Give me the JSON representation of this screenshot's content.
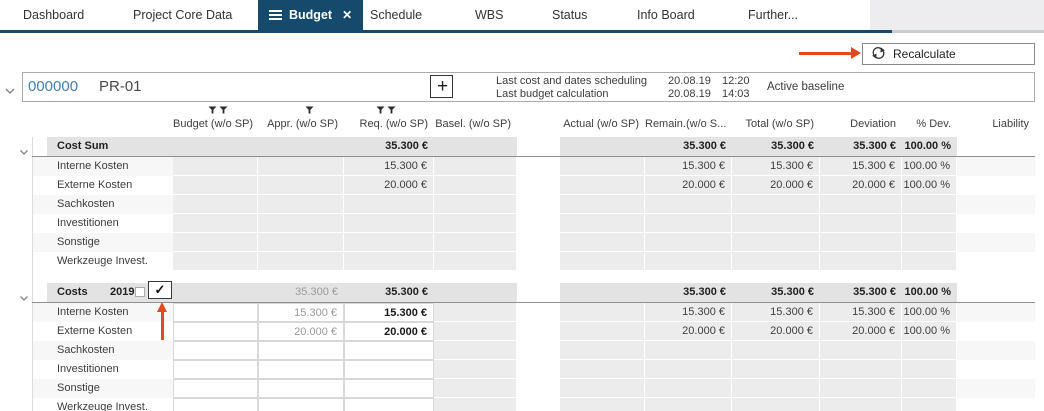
{
  "tabs": [
    {
      "label": "Dashboard",
      "active": false
    },
    {
      "label": "Project Core Data",
      "active": false
    },
    {
      "label": "Budget",
      "active": true
    },
    {
      "label": "Schedule",
      "active": false
    },
    {
      "label": "WBS",
      "active": false
    },
    {
      "label": "Status",
      "active": false
    },
    {
      "label": "Info Board",
      "active": false
    },
    {
      "label": "Further...",
      "active": false
    }
  ],
  "toolbar": {
    "recalculate_label": "Recalculate"
  },
  "project": {
    "number": "000000",
    "code": "PR-01",
    "info": [
      {
        "label": "Last cost and dates scheduling",
        "date": "20.08.19",
        "time": "12:20"
      },
      {
        "label": "Last budget calculation",
        "date": "20.08.19",
        "time": "14:03"
      }
    ],
    "baseline_label": "Active baseline"
  },
  "table": {
    "columns": [
      {
        "key": "budget",
        "label": "Budget (w/o SP)",
        "filters": 2
      },
      {
        "key": "appr",
        "label": "Appr. (w/o SP)",
        "filters": 1
      },
      {
        "key": "req",
        "label": "Req. (w/o SP)",
        "filters": 2
      },
      {
        "key": "basel",
        "label": "Basel. (w/o SP)",
        "filters": 0
      },
      {
        "key": "actual",
        "label": "Actual (w/o SP)",
        "filters": 0
      },
      {
        "key": "remain",
        "label": "Remain.(w/o S...",
        "filters": 0
      },
      {
        "key": "total",
        "label": "Total (w/o SP)",
        "filters": 0
      },
      {
        "key": "deviation",
        "label": "Deviation",
        "filters": 0
      },
      {
        "key": "pdev",
        "label": "% Dev.",
        "filters": 0
      },
      {
        "key": "liability",
        "label": "Liability",
        "filters": 0
      }
    ],
    "groups": [
      {
        "label": "Cost Sum",
        "year": "",
        "has_checkbox": false,
        "style": "readonly",
        "totals": {
          "req": "35.300 €",
          "remain": "35.300 €",
          "total": "35.300 €",
          "deviation": "35.300 €",
          "pdev": "100.00 %"
        },
        "rows": [
          {
            "label": "Interne Kosten",
            "req": "15.300 €",
            "remain": "15.300 €",
            "total": "15.300 €",
            "deviation": "15.300 €",
            "pdev": "100.00 %"
          },
          {
            "label": "Externe Kosten",
            "req": "20.000 €",
            "remain": "20.000 €",
            "total": "20.000 €",
            "deviation": "20.000 €",
            "pdev": "100.00 %"
          },
          {
            "label": "Sachkosten"
          },
          {
            "label": "Investitionen"
          },
          {
            "label": "Sonstige"
          },
          {
            "label": "Werkzeuge Invest."
          }
        ]
      },
      {
        "label": "Costs",
        "year": "2019",
        "has_checkbox": true,
        "style": "editable",
        "totals": {
          "appr": "35.300 €",
          "req": "35.300 €",
          "remain": "35.300 €",
          "total": "35.300 €",
          "deviation": "35.300 €",
          "pdev": "100.00 %"
        },
        "rows": [
          {
            "label": "Interne Kosten",
            "appr": "15.300 €",
            "req": "15.300 €",
            "remain": "15.300 €",
            "total": "15.300 €",
            "deviation": "15.300 €",
            "pdev": "100.00 %"
          },
          {
            "label": "Externe Kosten",
            "appr": "20.000 €",
            "req": "20.000 €",
            "remain": "20.000 €",
            "total": "20.000 €",
            "deviation": "20.000 €",
            "pdev": "100.00 %"
          },
          {
            "label": "Sachkosten"
          },
          {
            "label": "Investitionen"
          },
          {
            "label": "Sonstige"
          },
          {
            "label": "Werkzeuge Invest."
          }
        ]
      }
    ]
  },
  "glyphs": {
    "close": "✕",
    "plus": "+",
    "check": "✓"
  },
  "colors": {
    "accent_navy": "#164a6d",
    "annotation_arrow": "#e2491f",
    "project_number_blue": "#4180b8",
    "group_band_gray": "#e3e3e3",
    "cell_gray": "#ececec"
  }
}
